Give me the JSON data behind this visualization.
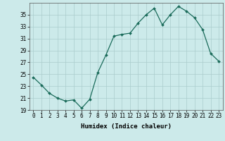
{
  "x": [
    0,
    1,
    2,
    3,
    4,
    5,
    6,
    7,
    8,
    9,
    10,
    11,
    12,
    13,
    14,
    15,
    16,
    17,
    18,
    19,
    20,
    21,
    22,
    23
  ],
  "y": [
    24.5,
    23.2,
    21.8,
    21.0,
    20.5,
    20.7,
    19.3,
    20.8,
    25.3,
    28.2,
    31.4,
    31.7,
    31.9,
    33.6,
    35.0,
    36.1,
    33.3,
    35.0,
    36.4,
    35.6,
    34.5,
    32.5,
    28.5,
    27.2
  ],
  "line_color": "#1a6b5a",
  "marker": "D",
  "marker_size": 2.0,
  "bg_color": "#cceaea",
  "grid_color": "#aacccc",
  "xlabel": "Humidex (Indice chaleur)",
  "ylim": [
    19,
    37
  ],
  "xlim": [
    -0.5,
    23.5
  ],
  "yticks": [
    19,
    21,
    23,
    25,
    27,
    29,
    31,
    33,
    35
  ],
  "xticks": [
    0,
    1,
    2,
    3,
    4,
    5,
    6,
    7,
    8,
    9,
    10,
    11,
    12,
    13,
    14,
    15,
    16,
    17,
    18,
    19,
    20,
    21,
    22,
    23
  ],
  "label_fontsize": 6.5,
  "tick_fontsize": 5.5
}
